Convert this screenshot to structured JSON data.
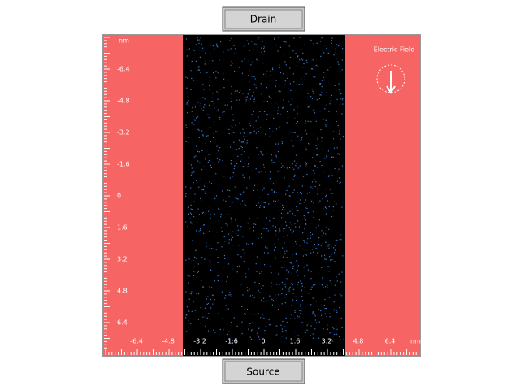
{
  "buttons": {
    "top": "Drain",
    "bottom": "Source"
  },
  "field_label": "Electric Field",
  "left_ruler": {
    "unit": "nm",
    "labels": [
      "-6.4",
      "-4.8",
      "-3.2",
      "-1.6",
      "0",
      "1.6",
      "3.2",
      "4.8",
      "6.4"
    ]
  },
  "bottom_ruler": {
    "unit": "nm",
    "labels": [
      "-6.4",
      "-4.8",
      "-3.2",
      "-1.6",
      "0",
      "1.6",
      "3.2",
      "4.8",
      "6.4"
    ]
  }
}
